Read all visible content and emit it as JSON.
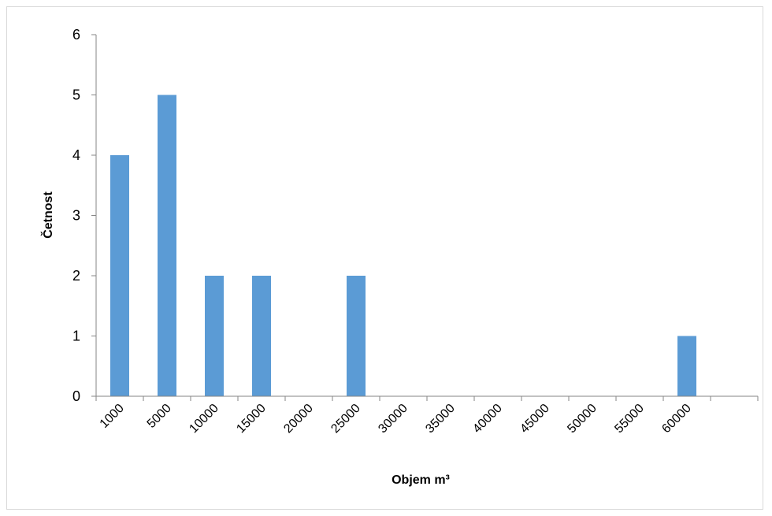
{
  "chart_data": {
    "type": "bar",
    "x_label": "Objem m³",
    "y_label": "Četnost",
    "categories": [
      "1000",
      "5000",
      "10000",
      "15000",
      "20000",
      "25000",
      "30000",
      "35000",
      "40000",
      "45000",
      "50000",
      "55000",
      "60000",
      null
    ],
    "values": [
      4,
      5,
      2,
      2,
      0,
      2,
      0,
      0,
      0,
      0,
      0,
      0,
      1,
      0
    ],
    "color": "#5b9bd5",
    "ylim": [
      0,
      6
    ],
    "yticks": [
      0,
      1,
      2,
      3,
      4,
      5,
      6
    ],
    "grid": false
  }
}
